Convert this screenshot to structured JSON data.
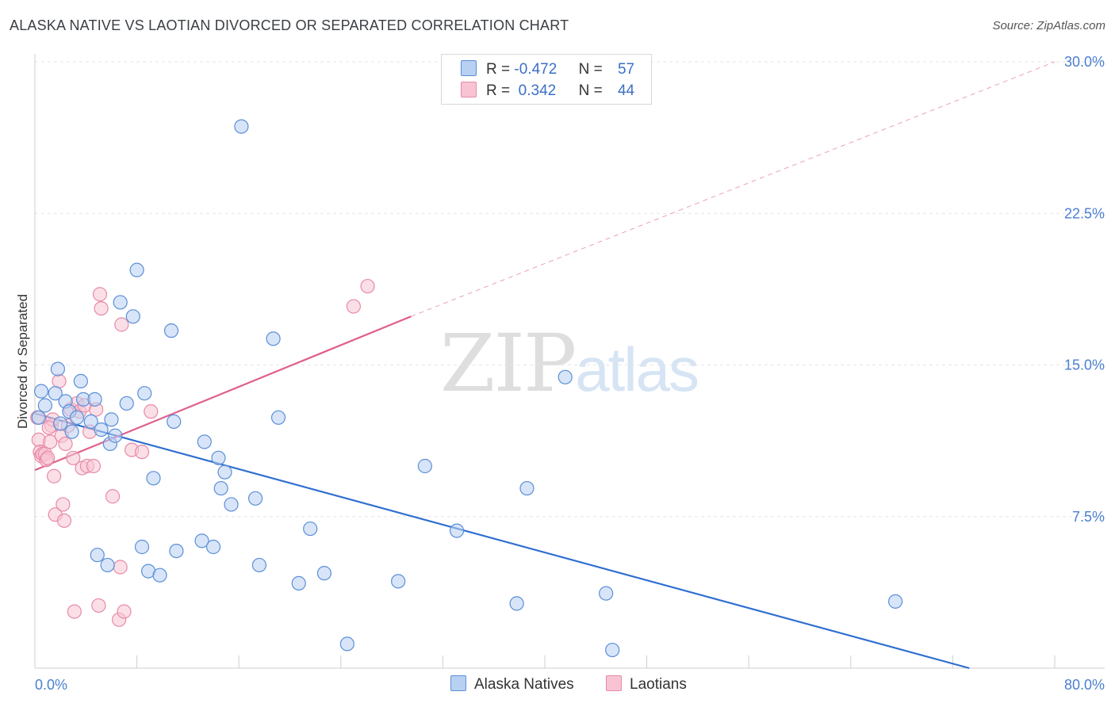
{
  "header": {
    "title": "ALASKA NATIVE VS LAOTIAN DIVORCED OR SEPARATED CORRELATION CHART",
    "source": "Source: ZipAtlas.com"
  },
  "legend": {
    "rows": [
      {
        "r_label": "R =",
        "r_value": "-0.472",
        "n_label": "N =",
        "n_value": "57"
      },
      {
        "r_label": "R =",
        "r_value": " 0.342",
        "n_label": "N =",
        "n_value": "44"
      }
    ]
  },
  "bottom_legend": {
    "series_a": "Alaska Natives",
    "series_b": "Laotians"
  },
  "watermark": {
    "zip": "ZIP",
    "atlas": "atlas"
  },
  "colors": {
    "alaska_fill": "#b8d0f2",
    "alaska_stroke": "#5b8fd8",
    "alaska_line": "#2f6fd0",
    "laotian_fill": "#f8c4d4",
    "laotian_stroke": "#e88aa6",
    "laotian_line": "#e0608a",
    "tick_text": "#4a7fd0",
    "grid": "#e6e6e6"
  },
  "chart_data": {
    "type": "scatter",
    "title": "ALASKA NATIVE VS LAOTIAN DIVORCED OR SEPARATED CORRELATION CHART",
    "xlabel": "",
    "ylabel": "Divorced or Separated",
    "xlim": [
      0,
      80
    ],
    "ylim": [
      0,
      30
    ],
    "x_tick_labels": [
      "0.0%",
      "80.0%"
    ],
    "y_ticks": [
      7.5,
      15.0,
      22.5,
      30.0
    ],
    "y_tick_labels": [
      "7.5%",
      "15.0%",
      "22.5%",
      "30.0%"
    ],
    "grid": true,
    "series": [
      {
        "name": "Alaska Natives",
        "r": -0.472,
        "n": 57,
        "trend": {
          "x": [
            0,
            73.3
          ],
          "y": [
            12.6,
            0
          ]
        },
        "points": [
          [
            0.3,
            12.4
          ],
          [
            0.5,
            13.7
          ],
          [
            0.8,
            13.0
          ],
          [
            1.6,
            13.6
          ],
          [
            1.8,
            14.8
          ],
          [
            2.4,
            13.2
          ],
          [
            2.7,
            12.7
          ],
          [
            2.9,
            11.7
          ],
          [
            3.3,
            12.4
          ],
          [
            3.6,
            14.2
          ],
          [
            3.8,
            13.3
          ],
          [
            4.4,
            12.2
          ],
          [
            4.7,
            13.3
          ],
          [
            5.2,
            11.8
          ],
          [
            5.9,
            11.1
          ],
          [
            6.3,
            11.5
          ],
          [
            6.7,
            18.1
          ],
          [
            7.2,
            13.1
          ],
          [
            7.7,
            17.4
          ],
          [
            8.0,
            19.7
          ],
          [
            8.6,
            13.6
          ],
          [
            9.3,
            9.4
          ],
          [
            10.7,
            16.7
          ],
          [
            10.9,
            12.2
          ],
          [
            11.1,
            5.8
          ],
          [
            13.1,
            6.3
          ],
          [
            13.3,
            11.2
          ],
          [
            14.0,
            6.0
          ],
          [
            14.4,
            10.4
          ],
          [
            14.6,
            8.9
          ],
          [
            14.9,
            9.7
          ],
          [
            15.4,
            8.1
          ],
          [
            16.2,
            26.8
          ],
          [
            17.3,
            8.4
          ],
          [
            17.6,
            5.1
          ],
          [
            18.7,
            16.3
          ],
          [
            19.1,
            12.4
          ],
          [
            20.7,
            4.2
          ],
          [
            21.6,
            6.9
          ],
          [
            22.7,
            4.7
          ],
          [
            24.5,
            1.2
          ],
          [
            28.5,
            4.3
          ],
          [
            30.6,
            10.0
          ],
          [
            33.1,
            6.8
          ],
          [
            37.8,
            3.2
          ],
          [
            38.6,
            8.9
          ],
          [
            41.6,
            14.4
          ],
          [
            44.8,
            3.7
          ],
          [
            45.3,
            0.9
          ],
          [
            67.5,
            3.3
          ],
          [
            5.7,
            5.1
          ],
          [
            4.9,
            5.6
          ],
          [
            8.4,
            6.0
          ],
          [
            8.9,
            4.8
          ],
          [
            9.8,
            4.6
          ],
          [
            6.0,
            12.3
          ],
          [
            2.0,
            12.1
          ]
        ]
      },
      {
        "name": "Laotians",
        "r": 0.342,
        "n": 44,
        "trend": {
          "x": [
            0,
            29.5
          ],
          "y": [
            9.8,
            17.4
          ],
          "dashed_to": {
            "x": 80.0,
            "y": 30.0
          }
        },
        "points": [
          [
            0.2,
            12.4
          ],
          [
            0.3,
            11.3
          ],
          [
            0.4,
            10.7
          ],
          [
            0.5,
            10.5
          ],
          [
            0.6,
            10.6
          ],
          [
            0.8,
            10.6
          ],
          [
            0.9,
            10.3
          ],
          [
            1.0,
            10.4
          ],
          [
            1.2,
            11.2
          ],
          [
            1.3,
            12.0
          ],
          [
            1.4,
            12.3
          ],
          [
            1.5,
            9.5
          ],
          [
            1.6,
            7.6
          ],
          [
            1.9,
            14.2
          ],
          [
            2.1,
            11.5
          ],
          [
            2.2,
            8.1
          ],
          [
            2.3,
            7.3
          ],
          [
            2.4,
            11.1
          ],
          [
            2.6,
            12.0
          ],
          [
            2.8,
            12.8
          ],
          [
            3.0,
            10.4
          ],
          [
            3.1,
            2.8
          ],
          [
            3.3,
            13.1
          ],
          [
            3.5,
            12.7
          ],
          [
            3.7,
            9.9
          ],
          [
            3.9,
            13.0
          ],
          [
            4.1,
            10.0
          ],
          [
            4.3,
            11.7
          ],
          [
            4.6,
            10.0
          ],
          [
            4.8,
            12.8
          ],
          [
            5.0,
            3.1
          ],
          [
            5.1,
            18.5
          ],
          [
            5.2,
            17.8
          ],
          [
            6.1,
            8.5
          ],
          [
            6.6,
            2.4
          ],
          [
            6.7,
            5.0
          ],
          [
            6.8,
            17.0
          ],
          [
            7.0,
            2.8
          ],
          [
            7.6,
            10.8
          ],
          [
            8.4,
            10.7
          ],
          [
            9.1,
            12.7
          ],
          [
            25.0,
            17.9
          ],
          [
            26.1,
            18.9
          ],
          [
            1.1,
            11.9
          ]
        ]
      }
    ]
  }
}
